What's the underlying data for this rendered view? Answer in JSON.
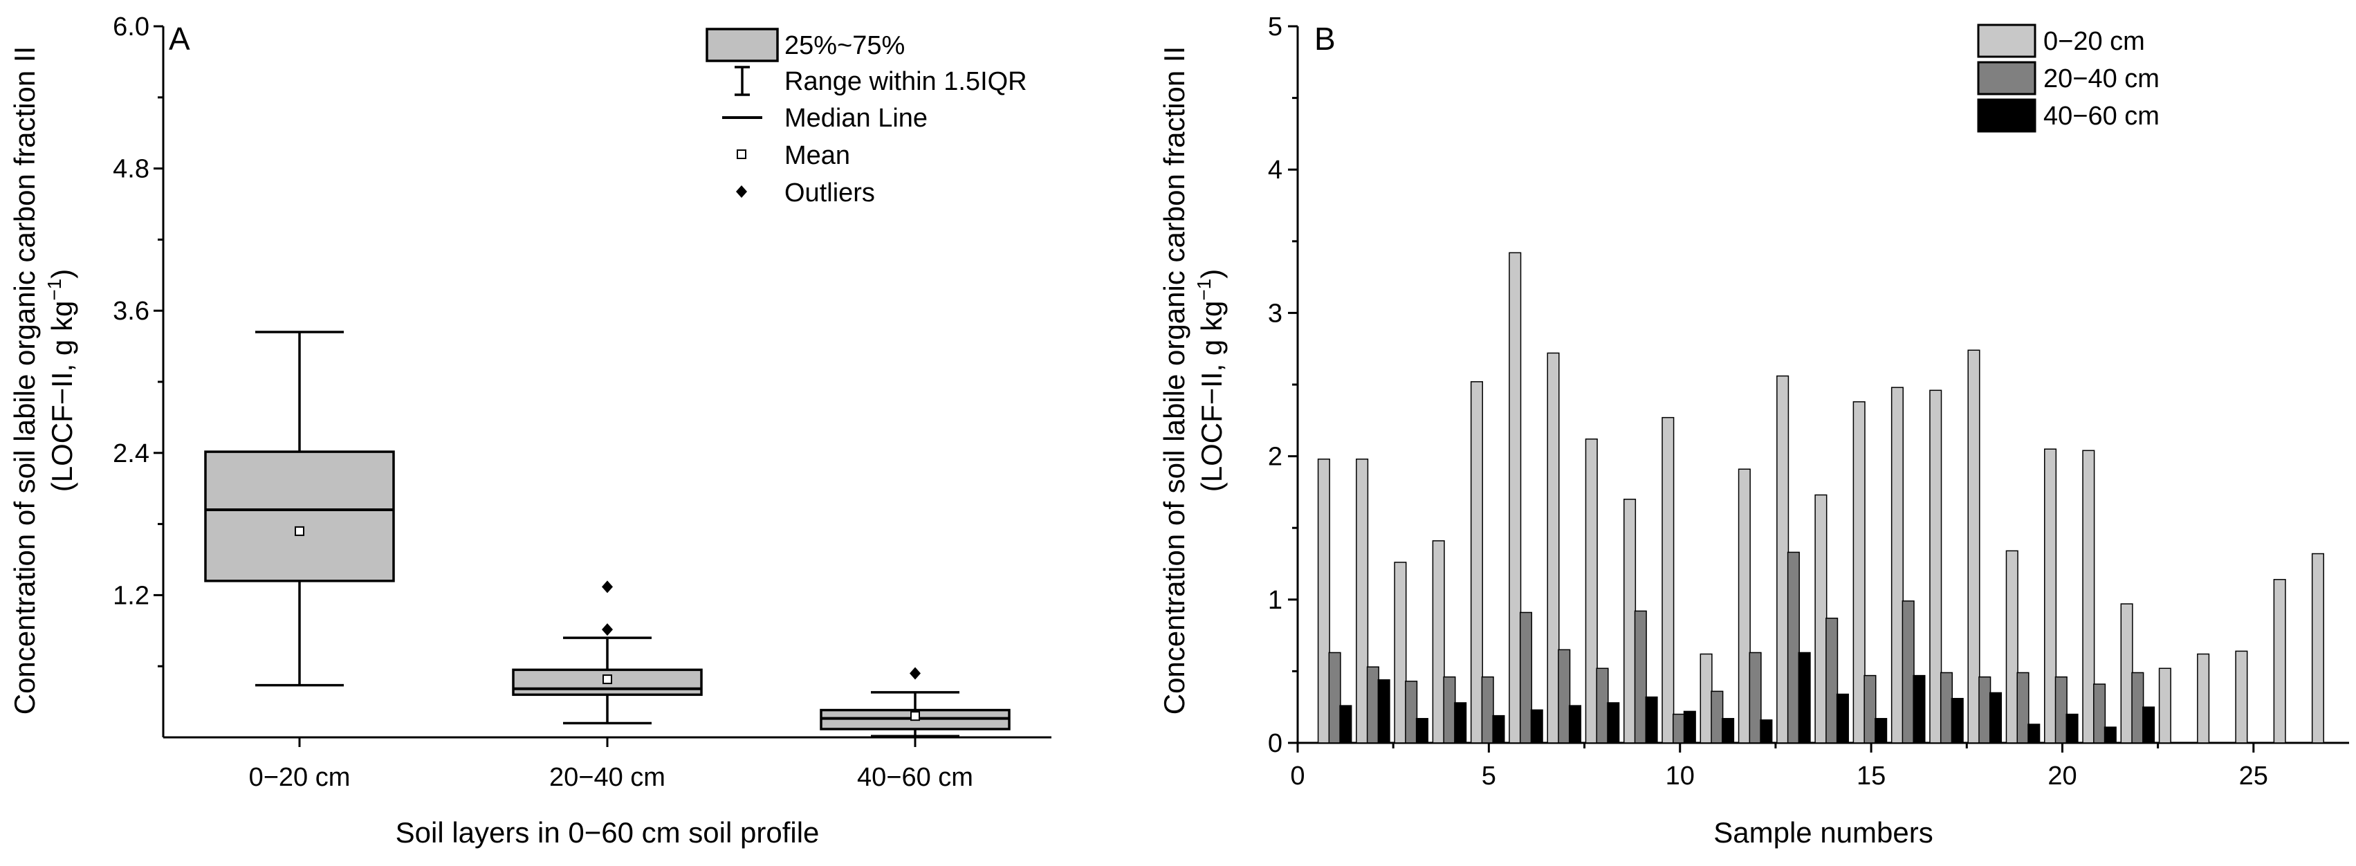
{
  "chart_data": [
    {
      "panel": "A",
      "type": "box",
      "xlabel": "Soil layers in 0−60 cm soil profile",
      "ylabel_line1": "Concentration of soil labile organic carbon fraction II",
      "ylabel_line2_main": "(LOCF−II, g kg",
      "ylabel_line2_sup": "−1",
      "ylabel_line2_close": ")",
      "ylim": [
        0,
        6.0
      ],
      "yticks": [
        1.2,
        2.4,
        3.6,
        4.8,
        6.0
      ],
      "ytick_labels": [
        "1.2",
        "2.4",
        "3.6",
        "4.8",
        "6.0"
      ],
      "categories": [
        "0−20 cm",
        "20−40 cm",
        "40−60 cm"
      ],
      "boxes": [
        {
          "q1": 1.32,
          "median": 1.92,
          "q3": 2.41,
          "whisker_low": 0.44,
          "whisker_high": 3.42,
          "mean": 1.74,
          "outliers": []
        },
        {
          "q1": 0.36,
          "median": 0.41,
          "q3": 0.57,
          "whisker_low": 0.12,
          "whisker_high": 0.84,
          "mean": 0.49,
          "outliers": [
            0.91,
            1.27
          ]
        },
        {
          "q1": 0.07,
          "median": 0.16,
          "q3": 0.23,
          "whisker_low": 0.01,
          "whisker_high": 0.38,
          "mean": 0.18,
          "outliers": [
            0.54
          ]
        }
      ],
      "legend": {
        "box": "25%~75%",
        "range": "Range within 1.5IQR",
        "median": "Median Line",
        "mean": "Mean",
        "outliers": "Outliers"
      }
    },
    {
      "panel": "B",
      "type": "bar",
      "xlabel": "Sample numbers",
      "ylabel_line1": "Concentration of soil labile organic carbon fraction II",
      "ylabel_line2_main": "(LOCF−II, g kg",
      "ylabel_line2_sup": "−1",
      "ylabel_line2_close": ")",
      "xlim": [
        0,
        27.5
      ],
      "ylim": [
        0,
        5
      ],
      "xticks": [
        0,
        5,
        10,
        15,
        20,
        25
      ],
      "xtick_labels": [
        "0",
        "5",
        "10",
        "15",
        "20",
        "25"
      ],
      "yticks": [
        0,
        1,
        2,
        3,
        4,
        5
      ],
      "ytick_labels": [
        "0",
        "1",
        "2",
        "3",
        "4",
        "5"
      ],
      "x": [
        1,
        2,
        3,
        4,
        5,
        6,
        7,
        8,
        9,
        10,
        11,
        12,
        13,
        14,
        15,
        16,
        17,
        18,
        19,
        20,
        21,
        22,
        23,
        24,
        25,
        26,
        27
      ],
      "series": [
        {
          "name": "0−20 cm",
          "color": "#c8c8c8",
          "values": [
            1.98,
            1.98,
            1.26,
            1.41,
            2.52,
            3.42,
            2.72,
            2.12,
            1.7,
            2.27,
            0.62,
            1.91,
            2.56,
            1.73,
            2.38,
            2.48,
            2.46,
            2.74,
            1.34,
            2.05,
            2.04,
            0.97,
            0.52,
            0.62,
            0.64,
            1.14,
            1.32
          ]
        },
        {
          "name": "20−40 cm",
          "color": "#808080",
          "values": [
            0.63,
            0.53,
            0.43,
            0.46,
            0.46,
            0.91,
            0.65,
            0.52,
            0.92,
            0.2,
            0.36,
            0.63,
            1.33,
            0.87,
            0.47,
            0.99,
            0.49,
            0.46,
            0.49,
            0.46,
            0.41,
            0.49,
            null,
            null,
            null,
            null,
            null
          ]
        },
        {
          "name": "40−60 cm",
          "color": "#000000",
          "values": [
            0.26,
            0.44,
            0.17,
            0.28,
            0.19,
            0.23,
            0.26,
            0.28,
            0.32,
            0.22,
            0.17,
            0.16,
            0.63,
            0.34,
            0.17,
            0.47,
            0.31,
            0.35,
            0.13,
            0.2,
            0.11,
            0.25,
            null,
            null,
            null,
            null,
            null
          ]
        }
      ]
    }
  ]
}
